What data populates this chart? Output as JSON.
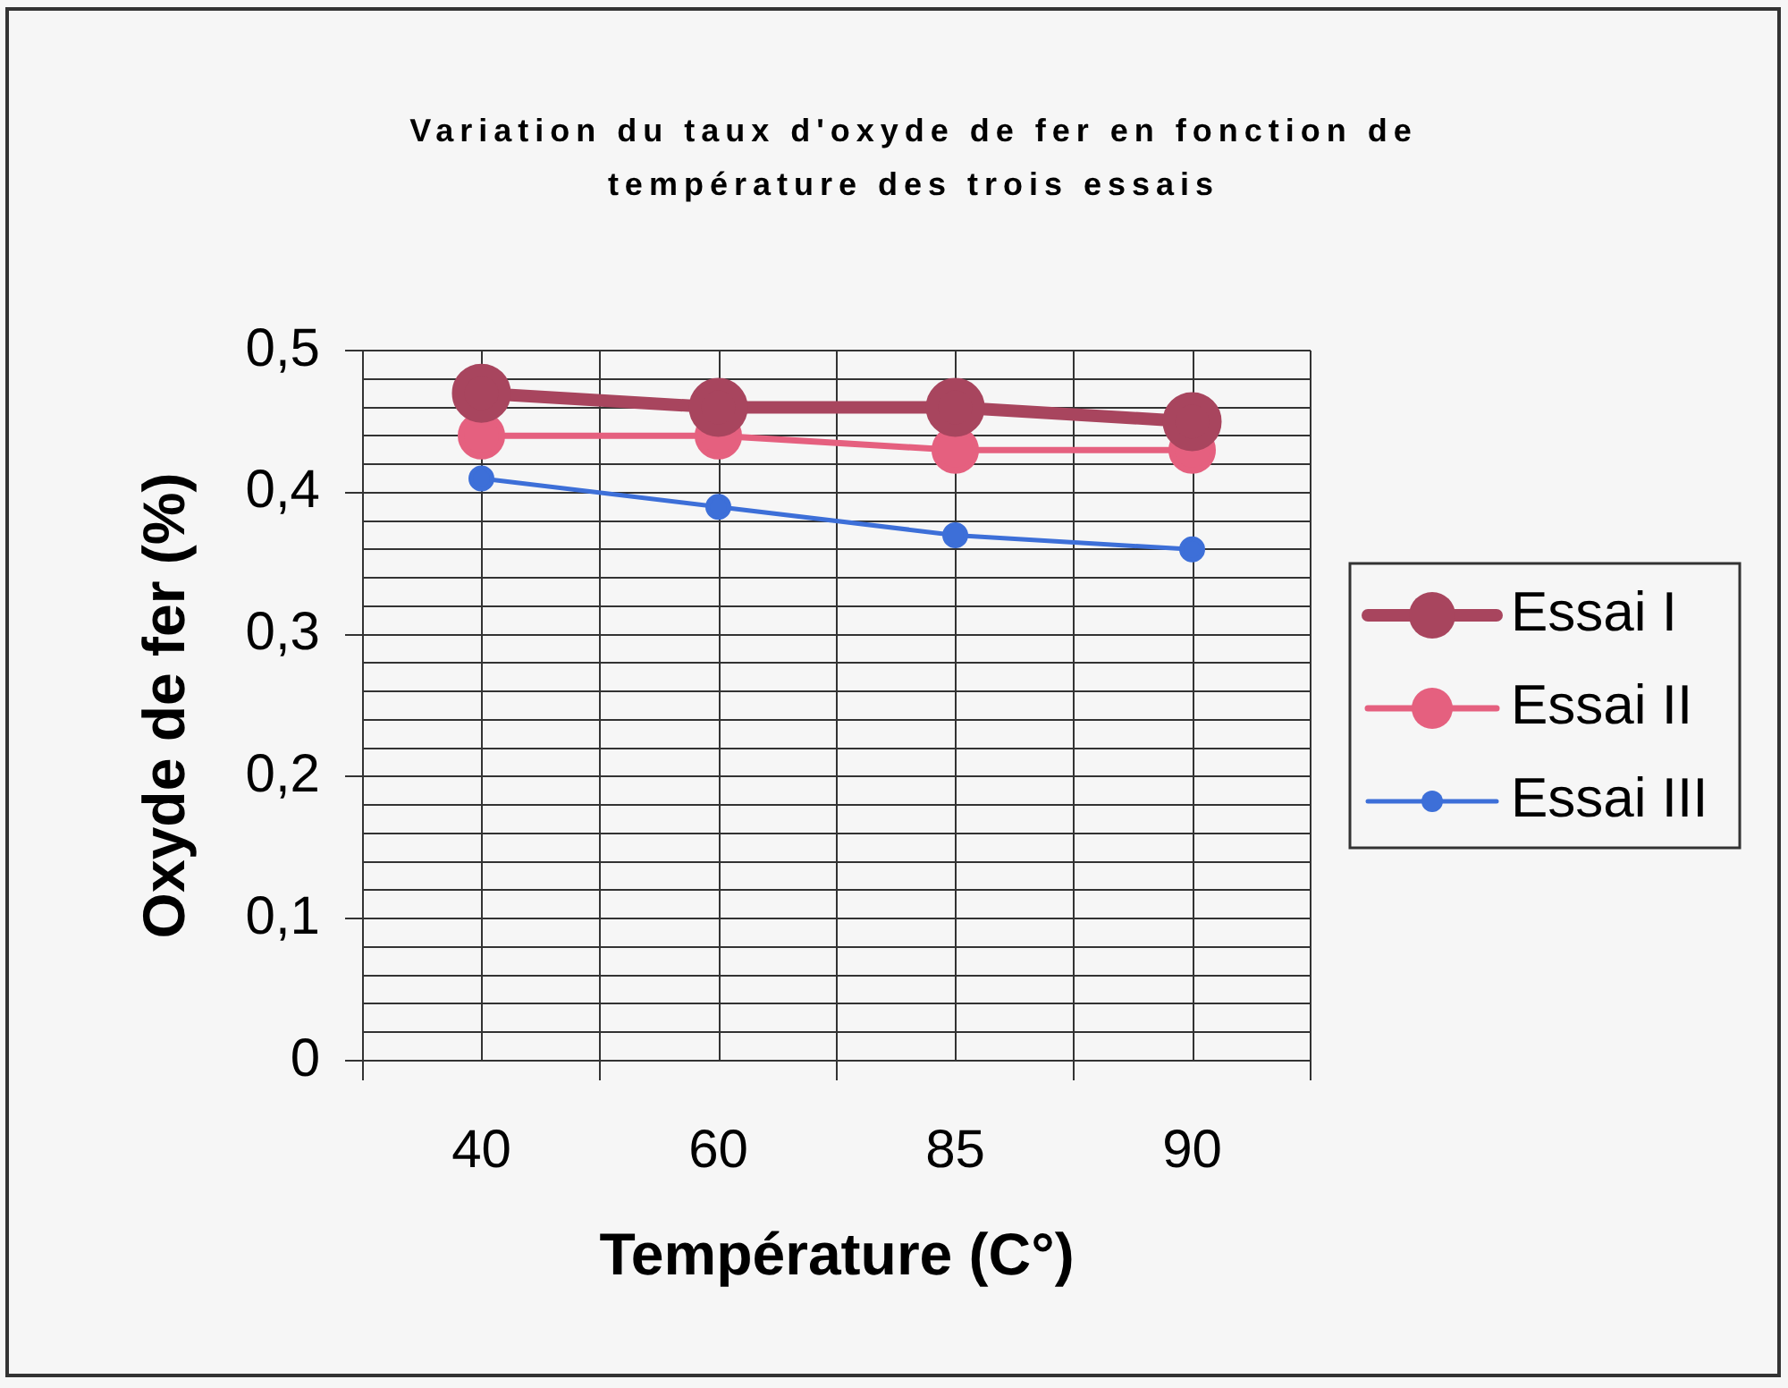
{
  "chart_data": {
    "type": "line",
    "title": "Variation du taux d'oxyde de fer en fonction de température des trois essais",
    "xlabel": "Température (C°)",
    "ylabel": "Oxyde de fer (%)",
    "categories": [
      "40",
      "60",
      "85",
      "90"
    ],
    "series": [
      {
        "name": "Essai I",
        "color": "#a8455e",
        "values": [
          0.47,
          0.46,
          0.46,
          0.45
        ]
      },
      {
        "name": "Essai II",
        "color": "#e5607f",
        "values": [
          0.44,
          0.44,
          0.43,
          0.43
        ]
      },
      {
        "name": "Essai III",
        "color": "#3d6fd8",
        "values": [
          0.41,
          0.39,
          0.37,
          0.36
        ]
      }
    ],
    "ylim": [
      0,
      0.5
    ],
    "yticks": [
      0,
      {
        "value": 0.02,
        "label": null
      },
      {
        "value": 0.04,
        "label": null
      },
      {
        "value": 0.06,
        "label": null
      },
      {
        "value": 0.08,
        "label": null
      },
      {
        "value": 0.1,
        "label": "0,1"
      },
      {
        "value": 0.12,
        "label": null
      },
      {
        "value": 0.14,
        "label": null
      },
      {
        "value": 0.16,
        "label": null
      },
      {
        "value": 0.18,
        "label": null
      },
      {
        "value": 0.2,
        "label": "0,2"
      },
      {
        "value": 0.22,
        "label": null
      },
      {
        "value": 0.24,
        "label": null
      },
      {
        "value": 0.26,
        "label": null
      },
      {
        "value": 0.28,
        "label": null
      },
      {
        "value": 0.3,
        "label": "0,3"
      },
      {
        "value": 0.32,
        "label": null
      },
      {
        "value": 0.34,
        "label": null
      },
      {
        "value": 0.36,
        "label": null
      },
      {
        "value": 0.38,
        "label": null
      },
      {
        "value": 0.4,
        "label": "0,4"
      },
      {
        "value": 0.42,
        "label": null
      },
      {
        "value": 0.44,
        "label": null
      },
      {
        "value": 0.46,
        "label": null
      },
      {
        "value": 0.48,
        "label": null
      },
      {
        "value": 0.5,
        "label": "0,5"
      }
    ],
    "grid": true,
    "legend": "right",
    "marker": "circle",
    "line_style": "solid"
  }
}
